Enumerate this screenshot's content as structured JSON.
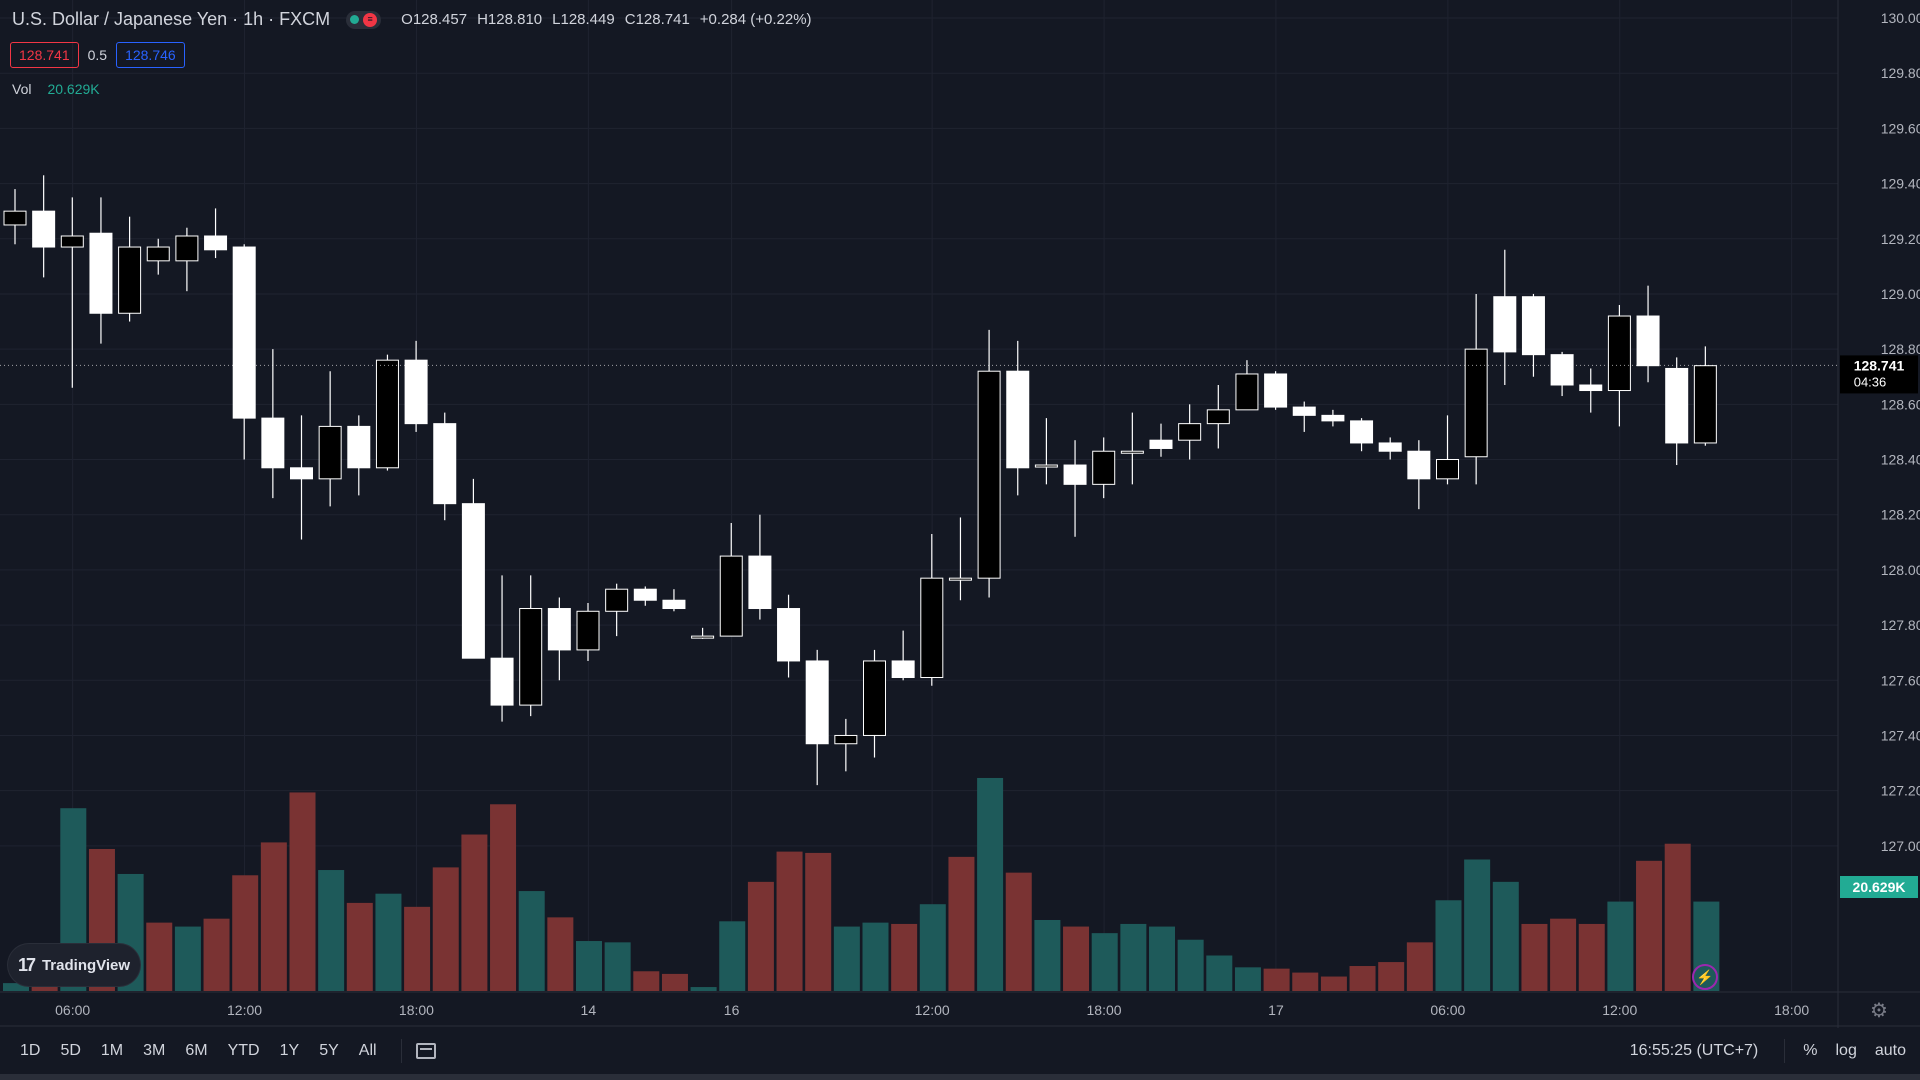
{
  "header": {
    "title": "U.S. Dollar / Japanese Yen · 1h · FXCM",
    "ohlc": {
      "o_label": "O",
      "o": "128.457",
      "h_label": "H",
      "h": "128.810",
      "l_label": "L",
      "l": "128.449",
      "c_label": "C",
      "c": "128.741",
      "change": "+0.284 (+0.22%)"
    }
  },
  "quote": {
    "bid": "128.741",
    "spread": "0.5",
    "ask": "128.746"
  },
  "volume_legend": {
    "label": "Vol",
    "value": "20.629K"
  },
  "logo": {
    "text": "TradingView",
    "mark": "17"
  },
  "toolbar": {
    "ranges": [
      "1D",
      "5D",
      "1M",
      "3M",
      "6M",
      "YTD",
      "1Y",
      "5Y",
      "All"
    ],
    "clock": "16:55:25 (UTC+7)",
    "percent": "%",
    "log": "log",
    "auto": "auto"
  },
  "colors": {
    "background": "#141823",
    "grid": "#1f2330",
    "candle_up_fill": "#000000",
    "candle_down_fill": "#ffffff",
    "wick": "#ffffff",
    "vol_up": "#1e5a5a",
    "vol_down": "#7a3333",
    "text": "#d1d4dc",
    "axis_text": "#b2b5be",
    "last_vol_badge": "#22ab94"
  },
  "chart_data": {
    "type": "candlestick",
    "y_axis": {
      "ticks": [
        "130.000",
        "129.800",
        "129.600",
        "129.400",
        "129.200",
        "129.000",
        "128.800",
        "128.600",
        "128.400",
        "128.200",
        "128.000",
        "127.800",
        "127.600",
        "127.400",
        "127.200",
        "127.000"
      ],
      "ylim": [
        126.8,
        130.0
      ]
    },
    "x_axis": {
      "ticks": [
        {
          "label": "06:00",
          "index": 1
        },
        {
          "label": "12:00",
          "index": 7
        },
        {
          "label": "18:00",
          "index": 13
        },
        {
          "label": "14",
          "index": 19
        },
        {
          "label": "16",
          "index": 24
        },
        {
          "label": "12:00",
          "index": 31
        },
        {
          "label": "18:00",
          "index": 37
        },
        {
          "label": "17",
          "index": 43
        },
        {
          "label": "06:00",
          "index": 49
        },
        {
          "label": "12:00",
          "index": 55
        },
        {
          "label": "18:00",
          "index": 61
        }
      ]
    },
    "last_price": {
      "value": "128.741",
      "countdown": "04:36"
    },
    "last_volume_label": "20.629K",
    "candles": [
      {
        "o": 129.25,
        "h": 129.38,
        "l": 129.18,
        "c": 129.3
      },
      {
        "o": 129.3,
        "h": 129.43,
        "l": 129.06,
        "c": 129.17
      },
      {
        "o": 129.17,
        "h": 129.35,
        "l": 128.66,
        "c": 129.21
      },
      {
        "o": 129.22,
        "h": 129.35,
        "l": 128.82,
        "c": 128.93
      },
      {
        "o": 128.93,
        "h": 129.28,
        "l": 128.9,
        "c": 129.17
      },
      {
        "o": 129.12,
        "h": 129.2,
        "l": 129.07,
        "c": 129.17
      },
      {
        "o": 129.12,
        "h": 129.24,
        "l": 129.01,
        "c": 129.21
      },
      {
        "o": 129.21,
        "h": 129.31,
        "l": 129.13,
        "c": 129.16
      },
      {
        "o": 129.17,
        "h": 129.18,
        "l": 128.4,
        "c": 128.55
      },
      {
        "o": 128.55,
        "h": 128.8,
        "l": 128.26,
        "c": 128.37
      },
      {
        "o": 128.37,
        "h": 128.56,
        "l": 128.11,
        "c": 128.33
      },
      {
        "o": 128.33,
        "h": 128.72,
        "l": 128.23,
        "c": 128.52
      },
      {
        "o": 128.52,
        "h": 128.56,
        "l": 128.27,
        "c": 128.37
      },
      {
        "o": 128.37,
        "h": 128.78,
        "l": 128.36,
        "c": 128.76
      },
      {
        "o": 128.76,
        "h": 128.83,
        "l": 128.5,
        "c": 128.53
      },
      {
        "o": 128.53,
        "h": 128.57,
        "l": 128.18,
        "c": 128.24
      },
      {
        "o": 128.24,
        "h": 128.33,
        "l": 127.68,
        "c": 127.68
      },
      {
        "o": 127.68,
        "h": 127.98,
        "l": 127.45,
        "c": 127.51
      },
      {
        "o": 127.51,
        "h": 127.98,
        "l": 127.47,
        "c": 127.86
      },
      {
        "o": 127.86,
        "h": 127.9,
        "l": 127.6,
        "c": 127.71
      },
      {
        "o": 127.71,
        "h": 127.88,
        "l": 127.67,
        "c": 127.85
      },
      {
        "o": 127.85,
        "h": 127.95,
        "l": 127.76,
        "c": 127.93
      },
      {
        "o": 127.93,
        "h": 127.94,
        "l": 127.87,
        "c": 127.89
      },
      {
        "o": 127.89,
        "h": 127.93,
        "l": 127.85,
        "c": 127.86
      },
      {
        "o": 127.76,
        "h": 127.79,
        "l": 127.75,
        "c": 127.76
      },
      {
        "o": 127.76,
        "h": 128.17,
        "l": 127.76,
        "c": 128.05
      },
      {
        "o": 128.05,
        "h": 128.2,
        "l": 127.82,
        "c": 127.86
      },
      {
        "o": 127.86,
        "h": 127.91,
        "l": 127.61,
        "c": 127.67
      },
      {
        "o": 127.67,
        "h": 127.71,
        "l": 127.22,
        "c": 127.37
      },
      {
        "o": 127.37,
        "h": 127.46,
        "l": 127.27,
        "c": 127.4
      },
      {
        "o": 127.4,
        "h": 127.71,
        "l": 127.32,
        "c": 127.67
      },
      {
        "o": 127.67,
        "h": 127.78,
        "l": 127.6,
        "c": 127.61
      },
      {
        "o": 127.61,
        "h": 128.13,
        "l": 127.58,
        "c": 127.97
      },
      {
        "o": 127.97,
        "h": 128.19,
        "l": 127.89,
        "c": 127.97
      },
      {
        "o": 127.97,
        "h": 128.87,
        "l": 127.9,
        "c": 128.72
      },
      {
        "o": 128.72,
        "h": 128.83,
        "l": 128.27,
        "c": 128.37
      },
      {
        "o": 128.38,
        "h": 128.55,
        "l": 128.31,
        "c": 128.38
      },
      {
        "o": 128.38,
        "h": 128.47,
        "l": 128.12,
        "c": 128.31
      },
      {
        "o": 128.31,
        "h": 128.48,
        "l": 128.26,
        "c": 128.43
      },
      {
        "o": 128.43,
        "h": 128.57,
        "l": 128.31,
        "c": 128.43
      },
      {
        "o": 128.47,
        "h": 128.53,
        "l": 128.41,
        "c": 128.44
      },
      {
        "o": 128.47,
        "h": 128.6,
        "l": 128.4,
        "c": 128.53
      },
      {
        "o": 128.53,
        "h": 128.67,
        "l": 128.44,
        "c": 128.58
      },
      {
        "o": 128.58,
        "h": 128.76,
        "l": 128.58,
        "c": 128.71
      },
      {
        "o": 128.71,
        "h": 128.72,
        "l": 128.58,
        "c": 128.59
      },
      {
        "o": 128.59,
        "h": 128.61,
        "l": 128.5,
        "c": 128.56
      },
      {
        "o": 128.56,
        "h": 128.58,
        "l": 128.52,
        "c": 128.54
      },
      {
        "o": 128.54,
        "h": 128.55,
        "l": 128.43,
        "c": 128.46
      },
      {
        "o": 128.46,
        "h": 128.48,
        "l": 128.4,
        "c": 128.43
      },
      {
        "o": 128.43,
        "h": 128.47,
        "l": 128.22,
        "c": 128.33
      },
      {
        "o": 128.33,
        "h": 128.56,
        "l": 128.31,
        "c": 128.4
      },
      {
        "o": 128.41,
        "h": 129.0,
        "l": 128.31,
        "c": 128.8
      },
      {
        "o": 128.99,
        "h": 129.16,
        "l": 128.67,
        "c": 128.79
      },
      {
        "o": 128.99,
        "h": 129.0,
        "l": 128.7,
        "c": 128.78
      },
      {
        "o": 128.78,
        "h": 128.79,
        "l": 128.63,
        "c": 128.67
      },
      {
        "o": 128.67,
        "h": 128.73,
        "l": 128.57,
        "c": 128.65
      },
      {
        "o": 128.65,
        "h": 128.96,
        "l": 128.52,
        "c": 128.92
      },
      {
        "o": 128.92,
        "h": 129.03,
        "l": 128.68,
        "c": 128.74
      },
      {
        "o": 128.73,
        "h": 128.77,
        "l": 128.38,
        "c": 128.46
      },
      {
        "o": 128.46,
        "h": 128.81,
        "l": 128.45,
        "c": 128.74
      }
    ],
    "volumes": [
      {
        "v": 30,
        "dir": "up"
      },
      {
        "v": 180,
        "dir": "down"
      },
      {
        "v": 695,
        "dir": "up"
      },
      {
        "v": 540,
        "dir": "down"
      },
      {
        "v": 445,
        "dir": "up"
      },
      {
        "v": 260,
        "dir": "down"
      },
      {
        "v": 245,
        "dir": "up"
      },
      {
        "v": 275,
        "dir": "down"
      },
      {
        "v": 440,
        "dir": "down"
      },
      {
        "v": 565,
        "dir": "down"
      },
      {
        "v": 755,
        "dir": "down"
      },
      {
        "v": 460,
        "dir": "up"
      },
      {
        "v": 335,
        "dir": "down"
      },
      {
        "v": 370,
        "dir": "up"
      },
      {
        "v": 320,
        "dir": "down"
      },
      {
        "v": 470,
        "dir": "down"
      },
      {
        "v": 595,
        "dir": "down"
      },
      {
        "v": 710,
        "dir": "down"
      },
      {
        "v": 380,
        "dir": "up"
      },
      {
        "v": 280,
        "dir": "down"
      },
      {
        "v": 190,
        "dir": "up"
      },
      {
        "v": 185,
        "dir": "up"
      },
      {
        "v": 75,
        "dir": "down"
      },
      {
        "v": 65,
        "dir": "down"
      },
      {
        "v": 15,
        "dir": "up"
      },
      {
        "v": 265,
        "dir": "up"
      },
      {
        "v": 415,
        "dir": "down"
      },
      {
        "v": 530,
        "dir": "down"
      },
      {
        "v": 525,
        "dir": "down"
      },
      {
        "v": 245,
        "dir": "up"
      },
      {
        "v": 260,
        "dir": "up"
      },
      {
        "v": 255,
        "dir": "down"
      },
      {
        "v": 330,
        "dir": "up"
      },
      {
        "v": 510,
        "dir": "down"
      },
      {
        "v": 810,
        "dir": "up"
      },
      {
        "v": 450,
        "dir": "down"
      },
      {
        "v": 270,
        "dir": "up"
      },
      {
        "v": 245,
        "dir": "down"
      },
      {
        "v": 220,
        "dir": "up"
      },
      {
        "v": 255,
        "dir": "up"
      },
      {
        "v": 245,
        "dir": "up"
      },
      {
        "v": 195,
        "dir": "up"
      },
      {
        "v": 135,
        "dir": "up"
      },
      {
        "v": 90,
        "dir": "up"
      },
      {
        "v": 85,
        "dir": "down"
      },
      {
        "v": 70,
        "dir": "down"
      },
      {
        "v": 55,
        "dir": "down"
      },
      {
        "v": 95,
        "dir": "down"
      },
      {
        "v": 110,
        "dir": "down"
      },
      {
        "v": 185,
        "dir": "down"
      },
      {
        "v": 345,
        "dir": "up"
      },
      {
        "v": 500,
        "dir": "up"
      },
      {
        "v": 415,
        "dir": "up"
      },
      {
        "v": 255,
        "dir": "down"
      },
      {
        "v": 275,
        "dir": "down"
      },
      {
        "v": 255,
        "dir": "down"
      },
      {
        "v": 340,
        "dir": "up"
      },
      {
        "v": 495,
        "dir": "down"
      },
      {
        "v": 560,
        "dir": "down"
      },
      {
        "v": 340,
        "dir": "up"
      }
    ]
  }
}
